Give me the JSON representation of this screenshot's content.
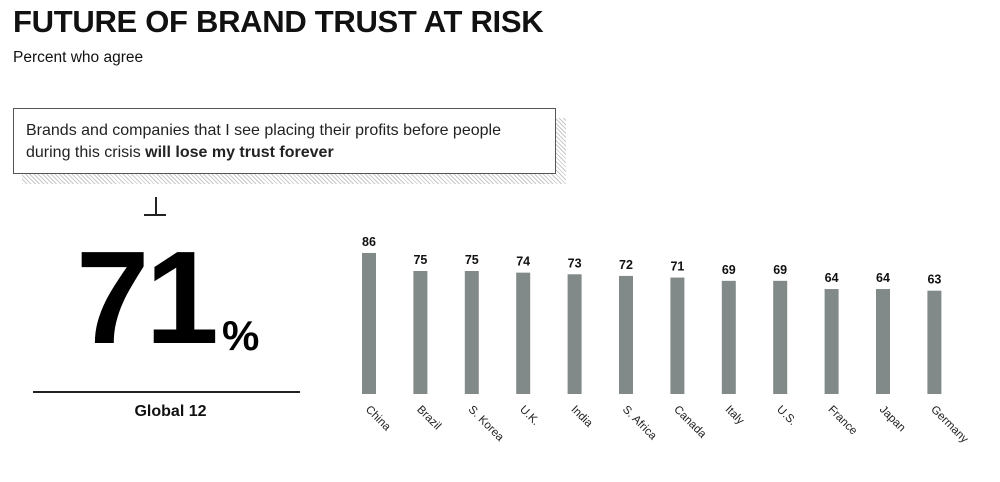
{
  "title": "FUTURE OF BRAND TRUST AT RISK",
  "subtitle": "Percent who agree",
  "callout": {
    "text_regular": "Brands and companies that I see placing their profits before people during this crisis ",
    "text_bold": "will lose my trust forever"
  },
  "global": {
    "value": "71",
    "unit": "%",
    "label": "Global 12"
  },
  "colors": {
    "bar": "#828a89",
    "text": "#111111"
  },
  "chart_data": {
    "type": "bar",
    "title": "",
    "xlabel": "",
    "ylabel": "",
    "ylim": [
      0,
      100
    ],
    "grid": false,
    "categories": [
      "China",
      "Brazil",
      "S. Korea",
      "U.K.",
      "India",
      "S. Africa",
      "Canada",
      "Italy",
      "U.S.",
      "France",
      "Japan",
      "Germany"
    ],
    "values": [
      86,
      75,
      75,
      74,
      73,
      72,
      71,
      69,
      69,
      64,
      64,
      63
    ]
  }
}
